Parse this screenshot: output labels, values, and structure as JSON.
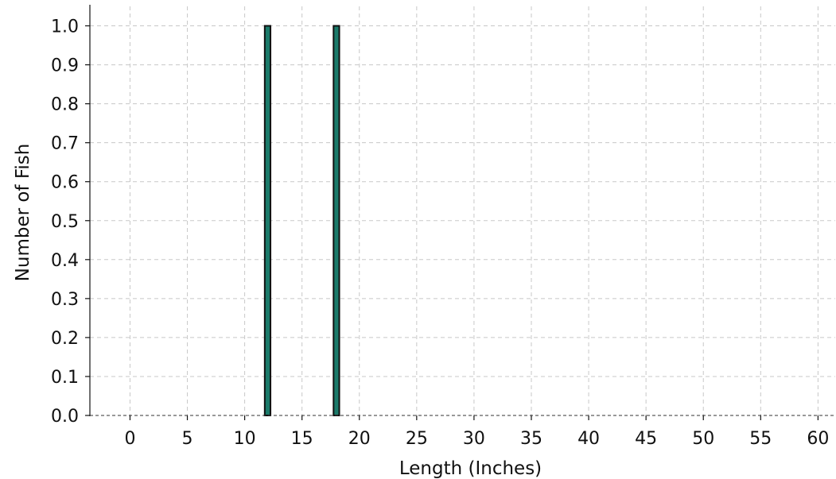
{
  "chart_data": {
    "type": "bar",
    "title": "",
    "xlabel": "Length (Inches)",
    "ylabel": "Number of Fish",
    "xlim": [
      -3.5,
      61.5
    ],
    "ylim": [
      0,
      1.05
    ],
    "x_ticks": [
      "0",
      "5",
      "10",
      "15",
      "20",
      "25",
      "30",
      "35",
      "40",
      "45",
      "50",
      "55",
      "60"
    ],
    "y_ticks": [
      "0.0",
      "0.1",
      "0.2",
      "0.3",
      "0.4",
      "0.5",
      "0.6",
      "0.7",
      "0.8",
      "0.9",
      "1.0"
    ],
    "x": [
      12,
      18
    ],
    "values": [
      1,
      1
    ],
    "bar_color": "#1b7a6a",
    "grid": true
  }
}
